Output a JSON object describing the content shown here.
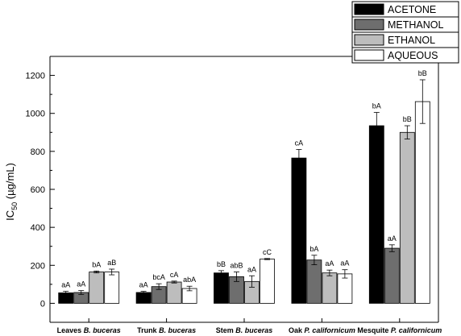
{
  "chart_data": {
    "type": "bar",
    "ylabel_main": "IC",
    "ylabel_sub": "50",
    "ylabel_rest": " (µg/mL)",
    "ylim": [
      -100,
      1300
    ],
    "yticks": [
      0,
      200,
      400,
      600,
      800,
      1000,
      1200
    ],
    "grid": false,
    "legend_position": "top-right",
    "categories": [
      {
        "prefix": "Leaves ",
        "italic": "B. buceras"
      },
      {
        "prefix": "Trunk ",
        "italic": "B. buceras"
      },
      {
        "prefix": "Stem ",
        "italic": "B. buceras"
      },
      {
        "prefix": "Oak ",
        "italic": "P. californicum"
      },
      {
        "prefix": "Mesquite ",
        "italic": "P. californicum"
      }
    ],
    "series": [
      {
        "name": "ACETONE",
        "color": "#000000",
        "values": [
          55,
          57,
          160,
          765,
          935
        ],
        "errors": [
          8,
          6,
          12,
          45,
          70
        ],
        "labels": [
          "aA",
          "aA",
          "bB",
          "cA",
          "bA"
        ]
      },
      {
        "name": "METHANOL",
        "color": "#6e6e6e",
        "values": [
          57,
          88,
          140,
          228,
          290
        ],
        "errors": [
          10,
          15,
          25,
          25,
          18
        ],
        "labels": [
          "aA",
          "bcA",
          "abB",
          "bA",
          "aA"
        ]
      },
      {
        "name": "ETHANOL",
        "color": "#bdbdbd",
        "values": [
          165,
          112,
          115,
          160,
          900
        ],
        "errors": [
          5,
          5,
          30,
          15,
          35
        ],
        "labels": [
          "bA",
          "cA",
          "aA",
          "aA",
          "bB"
        ]
      },
      {
        "name": "AQUEOUS",
        "color": "#ffffff",
        "values": [
          165,
          78,
          233,
          155,
          1062
        ],
        "errors": [
          15,
          12,
          3,
          22,
          115
        ],
        "labels": [
          "aB",
          "abA",
          "cC",
          "aA",
          "bB"
        ]
      }
    ]
  }
}
